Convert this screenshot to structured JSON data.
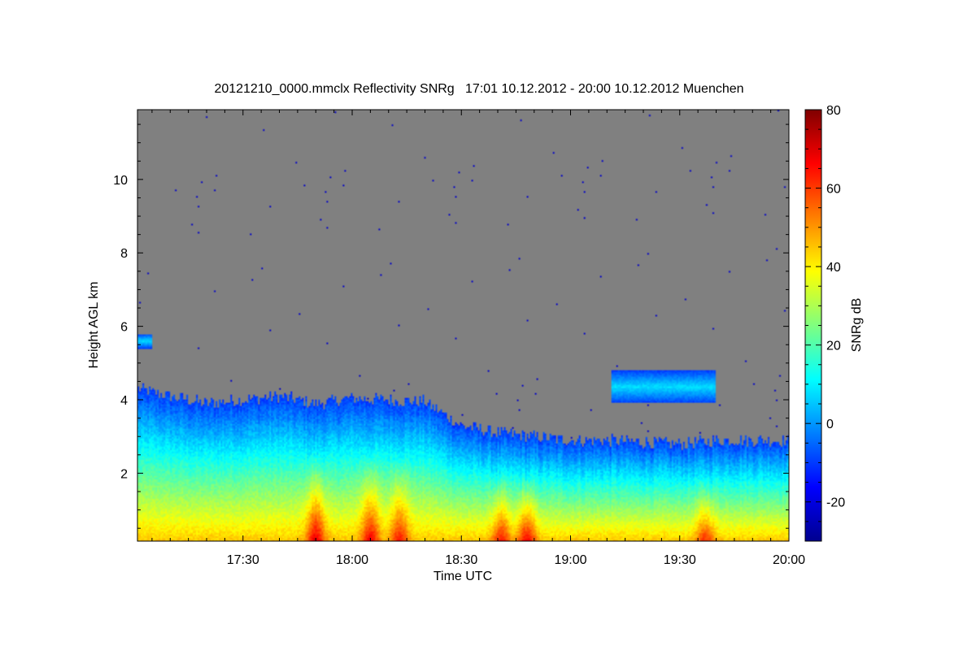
{
  "chart_data": {
    "type": "heatmap",
    "title": "20121210_0000.mmclx Reflectivity SNRg   17:01 10.12.2012 - 20:00 10.12.2012 Muenchen",
    "xlabel": "Time UTC",
    "ylabel": "Height AGL km",
    "colorbar_label": "SNRg dB",
    "xlim": [
      "17:01",
      "20:00"
    ],
    "ylim": [
      0.15,
      11.9
    ],
    "zlim": [
      -30,
      80
    ],
    "x_ticks": [
      "17:30",
      "18:00",
      "18:30",
      "19:00",
      "19:30",
      "20:00"
    ],
    "y_ticks": [
      2,
      4,
      6,
      8,
      10
    ],
    "colorbar_ticks": [
      -20,
      0,
      20,
      40,
      60,
      80
    ],
    "colormap": "jet",
    "background_color": "#808080",
    "grid": false,
    "echo_top_profile": {
      "time": [
        "17:01",
        "17:10",
        "17:20",
        "17:30",
        "17:40",
        "17:50",
        "18:00",
        "18:10",
        "18:20",
        "18:30",
        "18:40",
        "18:50",
        "19:00",
        "19:10",
        "19:20",
        "19:30",
        "19:40",
        "19:50",
        "20:00"
      ],
      "top_km": [
        4.3,
        4.1,
        3.9,
        4.0,
        4.1,
        3.9,
        4.05,
        4.0,
        3.95,
        3.3,
        3.1,
        3.0,
        2.9,
        2.9,
        2.85,
        2.8,
        2.9,
        2.9,
        2.9
      ]
    },
    "elevated_layers": [
      {
        "start": "17:01",
        "end": "17:05",
        "base_km": 5.4,
        "top_km": 5.8
      },
      {
        "start": "19:11",
        "end": "19:40",
        "base_km": 3.9,
        "top_km": 4.8
      }
    ],
    "convective_cells": [
      {
        "time": "17:50",
        "max_dbz": 60
      },
      {
        "time": "18:05",
        "max_dbz": 58
      },
      {
        "time": "18:13",
        "max_dbz": 55
      },
      {
        "time": "18:41",
        "max_dbz": 55
      },
      {
        "time": "18:48",
        "max_dbz": 58
      },
      {
        "time": "19:37",
        "max_dbz": 52
      }
    ]
  }
}
